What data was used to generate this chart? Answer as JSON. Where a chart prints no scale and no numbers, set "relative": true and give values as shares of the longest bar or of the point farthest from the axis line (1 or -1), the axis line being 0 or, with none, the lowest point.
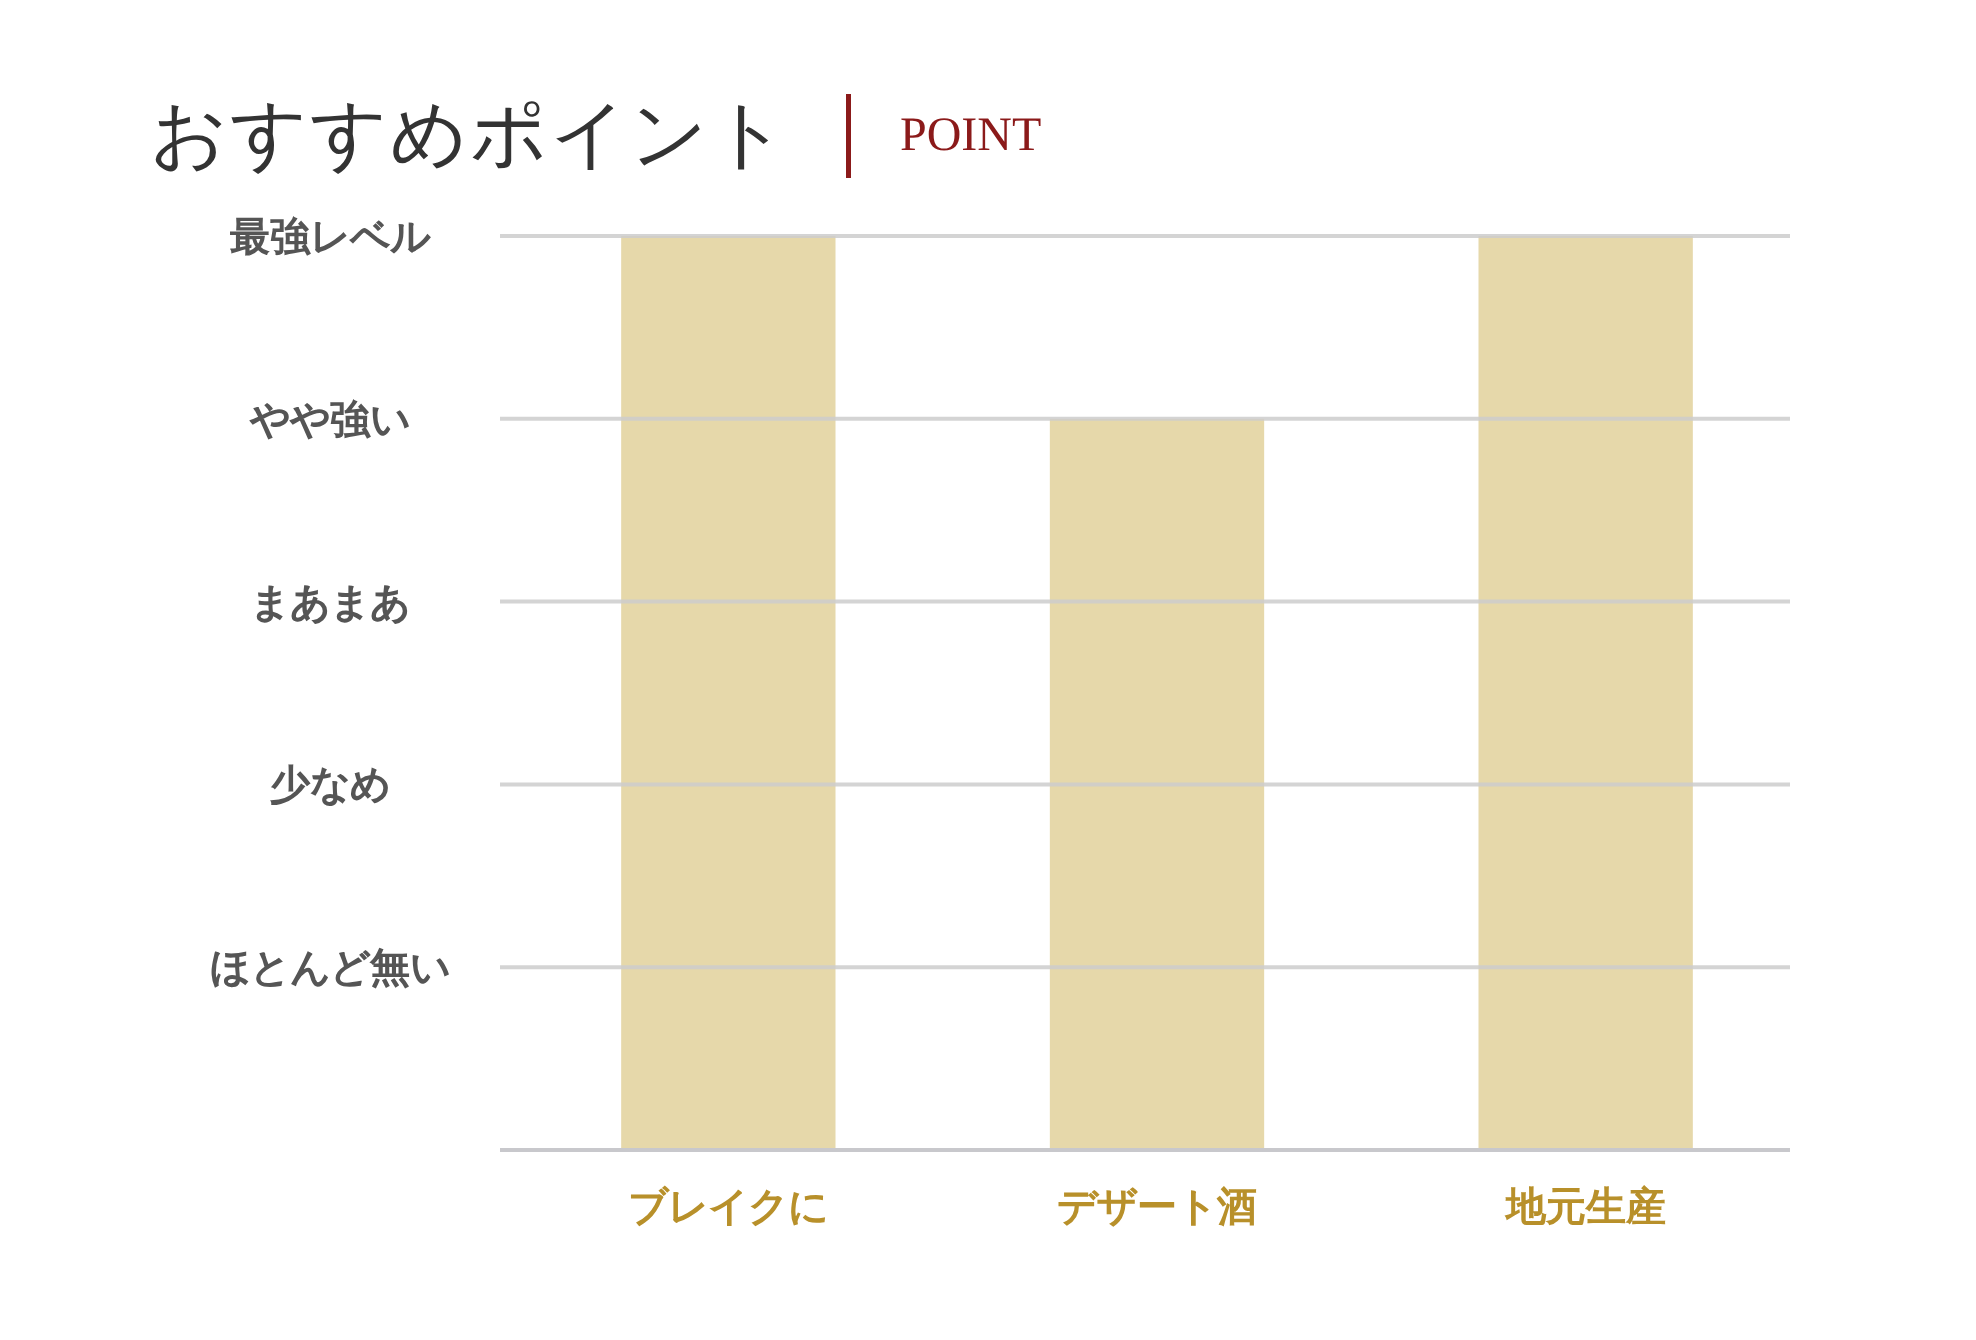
{
  "chart_data": {
    "type": "bar",
    "title": "おすすめポイント",
    "subtitle": "POINT",
    "categories": [
      "ブレイクに",
      "デザート酒",
      "地元生産"
    ],
    "values": [
      1,
      0.8,
      1
    ],
    "color": "#e6d8aa",
    "relative": true,
    "ref_lines": [
      {
        "axis": "y",
        "value": 0.2,
        "label": "ほとんど無い",
        "color": "#cccccc"
      },
      {
        "axis": "y",
        "value": 0.4,
        "label": "少なめ",
        "color": "#cccccc"
      },
      {
        "axis": "y",
        "value": 0.6,
        "label": "まあまあ",
        "color": "#cccccc"
      },
      {
        "axis": "y",
        "value": 0.8,
        "label": "やや強い",
        "color": "#cccccc"
      },
      {
        "axis": "y",
        "value": 1,
        "label": "最強レベル",
        "color": "#cccccc"
      }
    ]
  }
}
